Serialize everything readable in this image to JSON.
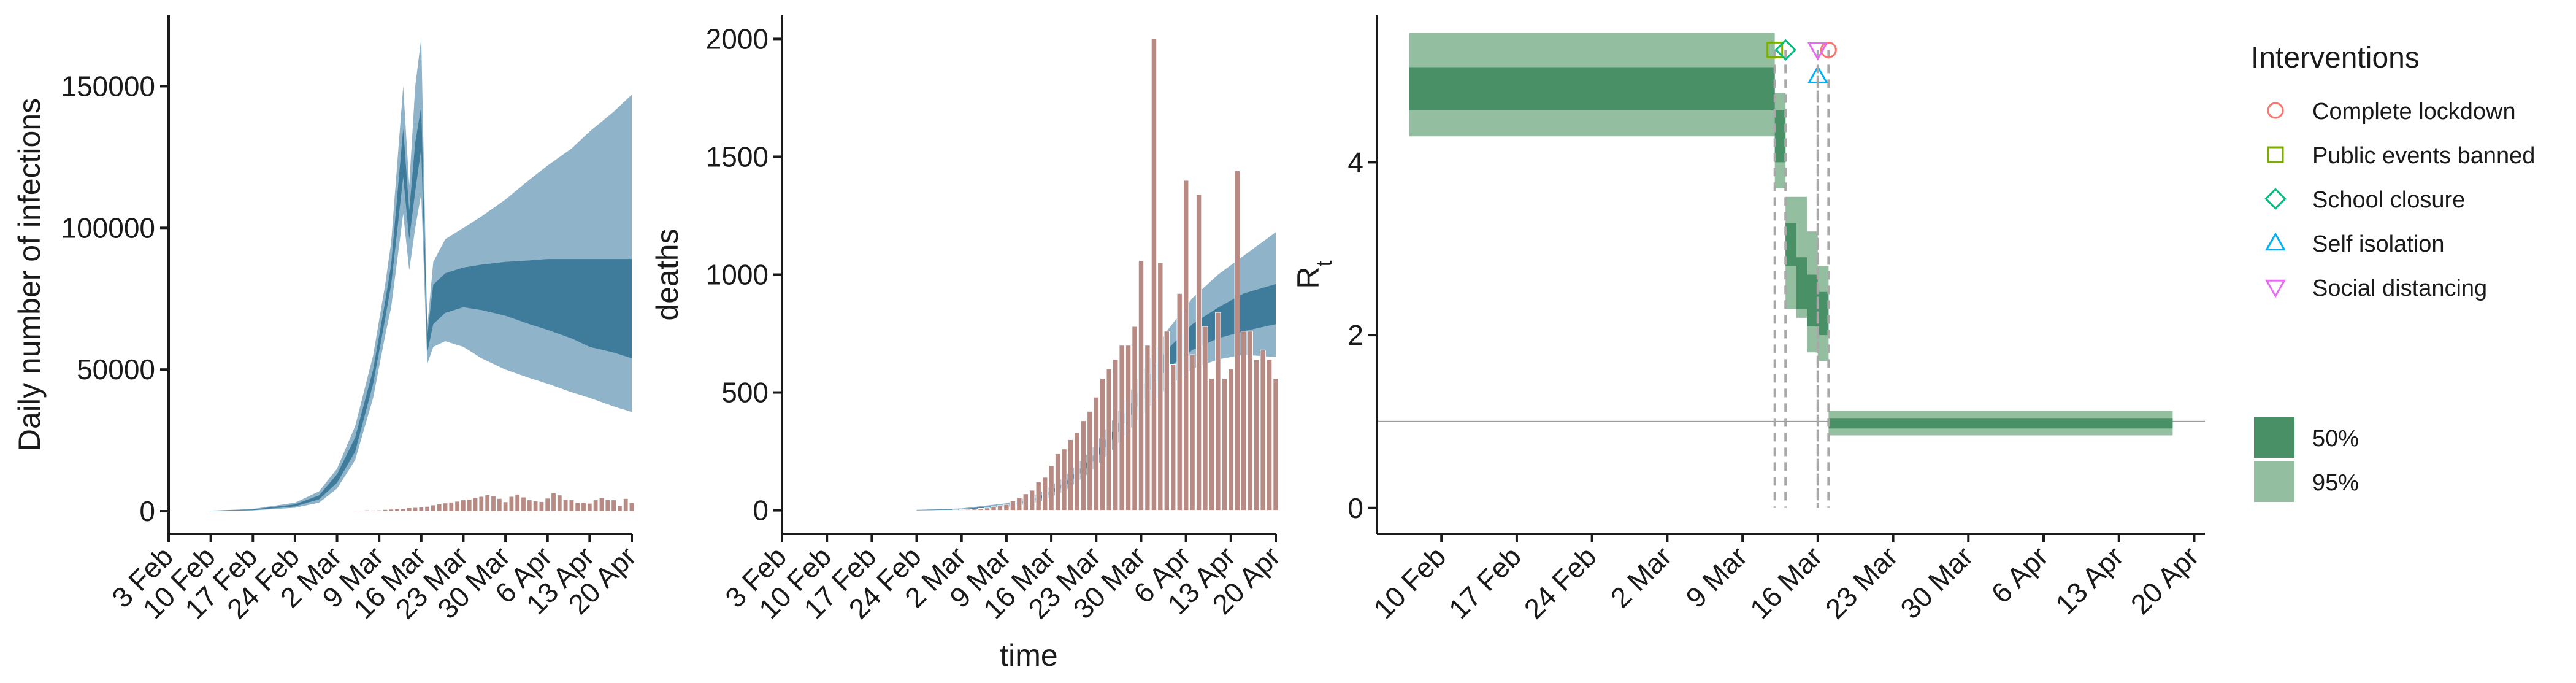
{
  "chart_data": [
    {
      "type": "area",
      "title": "",
      "xlabel": "",
      "ylabel": "Daily number of infections",
      "x_ticks": [
        "3 Feb",
        "10 Feb",
        "17 Feb",
        "24 Feb",
        "2 Mar",
        "9 Mar",
        "16 Mar",
        "23 Mar",
        "30 Mar",
        "6 Apr",
        "13 Apr",
        "20 Apr"
      ],
      "y_ticks": [
        "0",
        "50000",
        "100000",
        "150000"
      ],
      "ylim": [
        -8000,
        175000
      ],
      "xlim": [
        "2020-02-03",
        "2020-04-20"
      ],
      "series": [
        {
          "type": "band",
          "level": "95%",
          "color": "#8fb3c8",
          "x": [
            "2020-02-10",
            "2020-02-17",
            "2020-02-24",
            "2020-02-28",
            "2020-03-02",
            "2020-03-05",
            "2020-03-08",
            "2020-03-10",
            "2020-03-11",
            "2020-03-13",
            "2020-03-14",
            "2020-03-15",
            "2020-03-16",
            "2020-03-17",
            "2020-03-18",
            "2020-03-20",
            "2020-03-23",
            "2020-03-26",
            "2020-03-30",
            "2020-04-03",
            "2020-04-06",
            "2020-04-10",
            "2020-04-13",
            "2020-04-17",
            "2020-04-20"
          ],
          "upper": [
            200,
            800,
            3000,
            7000,
            15000,
            30000,
            55000,
            80000,
            95000,
            150000,
            115000,
            150000,
            167000,
            65000,
            88000,
            96000,
            100000,
            104000,
            110000,
            117000,
            122000,
            128000,
            134000,
            141000,
            147000
          ],
          "lower": [
            50,
            300,
            1200,
            3000,
            8000,
            18000,
            40000,
            62000,
            72000,
            105000,
            85000,
            100000,
            112000,
            52000,
            58000,
            60000,
            58000,
            54000,
            50000,
            47000,
            45000,
            42000,
            40000,
            37000,
            35000
          ]
        },
        {
          "type": "band",
          "level": "50%",
          "color": "#3f7c9b",
          "x": [
            "2020-02-10",
            "2020-02-17",
            "2020-02-24",
            "2020-02-28",
            "2020-03-02",
            "2020-03-05",
            "2020-03-08",
            "2020-03-10",
            "2020-03-11",
            "2020-03-13",
            "2020-03-14",
            "2020-03-15",
            "2020-03-16",
            "2020-03-17",
            "2020-03-18",
            "2020-03-20",
            "2020-03-23",
            "2020-03-26",
            "2020-03-30",
            "2020-04-03",
            "2020-04-06",
            "2020-04-10",
            "2020-04-13",
            "2020-04-17",
            "2020-04-20"
          ],
          "upper": [
            150,
            600,
            2400,
            5600,
            13000,
            26000,
            50000,
            74000,
            87000,
            135000,
            106000,
            130000,
            143000,
            62000,
            80000,
            84000,
            86000,
            87000,
            88000,
            88500,
            89000,
            89000,
            89000,
            89000,
            89000
          ],
          "lower": [
            80,
            400,
            1700,
            4200,
            10000,
            21000,
            45000,
            68000,
            80000,
            118000,
            96000,
            113000,
            128000,
            56000,
            66000,
            70000,
            72000,
            71000,
            69000,
            66000,
            64000,
            61000,
            58000,
            56000,
            54000
          ]
        }
      ],
      "bars": {
        "color": "#b78b84",
        "x": [
          "2020-02-25",
          "2020-02-26",
          "2020-02-27",
          "2020-02-28",
          "2020-02-29",
          "2020-03-01",
          "2020-03-02",
          "2020-03-03",
          "2020-03-04",
          "2020-03-05",
          "2020-03-06",
          "2020-03-07",
          "2020-03-08",
          "2020-03-09",
          "2020-03-10",
          "2020-03-11",
          "2020-03-12",
          "2020-03-13",
          "2020-03-14",
          "2020-03-15",
          "2020-03-16",
          "2020-03-17",
          "2020-03-18",
          "2020-03-19",
          "2020-03-20",
          "2020-03-21",
          "2020-03-22",
          "2020-03-23",
          "2020-03-24",
          "2020-03-25",
          "2020-03-26",
          "2020-03-27",
          "2020-03-28",
          "2020-03-29",
          "2020-03-30",
          "2020-03-31",
          "2020-04-01",
          "2020-04-02",
          "2020-04-03",
          "2020-04-04",
          "2020-04-05",
          "2020-04-06",
          "2020-04-07",
          "2020-04-08",
          "2020-04-09",
          "2020-04-10",
          "2020-04-11",
          "2020-04-12",
          "2020-04-13",
          "2020-04-14",
          "2020-04-15",
          "2020-04-16",
          "2020-04-17",
          "2020-04-18",
          "2020-04-19",
          "2020-04-20"
        ],
        "values": [
          0,
          0,
          0,
          0,
          0,
          100,
          0,
          200,
          150,
          250,
          300,
          400,
          350,
          400,
          600,
          700,
          800,
          900,
          1200,
          1300,
          1500,
          1700,
          2200,
          2500,
          2900,
          3200,
          3500,
          4000,
          4200,
          4700,
          5200,
          5800,
          5500,
          4500,
          3300,
          5200,
          6000,
          5000,
          4000,
          3600,
          3400,
          4600,
          6500,
          5700,
          4200,
          4000,
          3100,
          3000,
          2800,
          4000,
          4700,
          4100,
          4000,
          2000,
          4500,
          3000
        ]
      }
    },
    {
      "type": "bar",
      "title": "",
      "xlabel": "time",
      "ylabel": "deaths",
      "x_ticks": [
        "3 Feb",
        "10 Feb",
        "17 Feb",
        "24 Feb",
        "2 Mar",
        "9 Mar",
        "16 Mar",
        "23 Mar",
        "30 Mar",
        "6 Apr",
        "13 Apr",
        "20 Apr"
      ],
      "y_ticks": [
        "0",
        "500",
        "1000",
        "1500",
        "2000"
      ],
      "ylim": [
        -100,
        2100
      ],
      "xlim": [
        "2020-02-03",
        "2020-04-20"
      ],
      "series": [
        {
          "type": "band",
          "level": "95%",
          "color": "#8fb3c8",
          "x": [
            "2020-02-24",
            "2020-03-02",
            "2020-03-09",
            "2020-03-14",
            "2020-03-18",
            "2020-03-22",
            "2020-03-26",
            "2020-03-30",
            "2020-04-03",
            "2020-04-07",
            "2020-04-11",
            "2020-04-15",
            "2020-04-20"
          ],
          "upper": [
            2,
            8,
            30,
            70,
            140,
            250,
            400,
            580,
            760,
            900,
            1000,
            1080,
            1180
          ],
          "lower": [
            0,
            2,
            12,
            35,
            80,
            160,
            270,
            400,
            520,
            600,
            640,
            660,
            650
          ]
        },
        {
          "type": "band",
          "level": "50%",
          "color": "#3f7c9b",
          "x": [
            "2020-02-24",
            "2020-03-02",
            "2020-03-09",
            "2020-03-14",
            "2020-03-18",
            "2020-03-22",
            "2020-03-26",
            "2020-03-30",
            "2020-04-03",
            "2020-04-07",
            "2020-04-11",
            "2020-04-15",
            "2020-04-20"
          ],
          "upper": [
            1,
            5,
            22,
            55,
            115,
            215,
            350,
            520,
            680,
            790,
            860,
            920,
            960
          ],
          "lower": [
            0,
            3,
            16,
            45,
            100,
            190,
            315,
            460,
            600,
            680,
            730,
            760,
            790
          ]
        }
      ],
      "bars": {
        "color": "#b78b84",
        "x": [
          "2020-03-01",
          "2020-03-02",
          "2020-03-03",
          "2020-03-04",
          "2020-03-05",
          "2020-03-06",
          "2020-03-07",
          "2020-03-08",
          "2020-03-09",
          "2020-03-10",
          "2020-03-11",
          "2020-03-12",
          "2020-03-13",
          "2020-03-14",
          "2020-03-15",
          "2020-03-16",
          "2020-03-17",
          "2020-03-18",
          "2020-03-19",
          "2020-03-20",
          "2020-03-21",
          "2020-03-22",
          "2020-03-23",
          "2020-03-24",
          "2020-03-25",
          "2020-03-26",
          "2020-03-27",
          "2020-03-28",
          "2020-03-29",
          "2020-03-30",
          "2020-03-31",
          "2020-04-01",
          "2020-04-02",
          "2020-04-03",
          "2020-04-04",
          "2020-04-05",
          "2020-04-06",
          "2020-04-07",
          "2020-04-08",
          "2020-04-09",
          "2020-04-10",
          "2020-04-11",
          "2020-04-12",
          "2020-04-13",
          "2020-04-14",
          "2020-04-15",
          "2020-04-16",
          "2020-04-17",
          "2020-04-18",
          "2020-04-19",
          "2020-04-20"
        ],
        "values": [
          2,
          3,
          4,
          5,
          8,
          10,
          15,
          20,
          25,
          40,
          55,
          70,
          85,
          120,
          140,
          190,
          240,
          260,
          300,
          330,
          380,
          420,
          480,
          560,
          600,
          640,
          700,
          700,
          780,
          1060,
          700,
          2000,
          1050,
          760,
          620,
          920,
          1400,
          660,
          1340,
          780,
          560,
          840,
          560,
          600,
          1440,
          760,
          760,
          640,
          680,
          640,
          560
        ]
      }
    },
    {
      "type": "area",
      "title": "",
      "xlabel": "",
      "ylabel": "R",
      "ylabel_subscript": "t",
      "x_ticks": [
        "10 Feb",
        "17 Feb",
        "24 Feb",
        "2 Mar",
        "9 Mar",
        "16 Mar",
        "23 Mar",
        "30 Mar",
        "6 Apr",
        "13 Apr",
        "20 Apr"
      ],
      "y_ticks": [
        "0",
        "2",
        "4"
      ],
      "ylim": [
        -0.3,
        5.7
      ],
      "xlim": [
        "2020-02-04",
        "2020-04-21"
      ],
      "reference_line": 1,
      "series": [
        {
          "type": "band",
          "level": "95%",
          "color": "#93bfa0",
          "x": [
            "2020-02-07",
            "2020-03-12",
            "2020-03-12",
            "2020-03-13",
            "2020-03-13",
            "2020-03-14",
            "2020-03-14",
            "2020-03-15",
            "2020-03-15",
            "2020-03-16",
            "2020-03-16",
            "2020-03-17",
            "2020-03-17",
            "2020-04-18"
          ],
          "upper": [
            5.5,
            5.5,
            4.8,
            4.8,
            3.6,
            3.6,
            3.6,
            3.6,
            3.2,
            3.2,
            2.8,
            2.8,
            1.12,
            1.12
          ],
          "lower": [
            4.3,
            4.3,
            3.7,
            3.7,
            2.3,
            2.3,
            2.2,
            2.2,
            1.8,
            1.8,
            1.7,
            1.7,
            0.84,
            0.84
          ]
        },
        {
          "type": "band",
          "level": "50%",
          "color": "#4a9066",
          "x": [
            "2020-02-07",
            "2020-03-12",
            "2020-03-12",
            "2020-03-13",
            "2020-03-13",
            "2020-03-14",
            "2020-03-14",
            "2020-03-15",
            "2020-03-15",
            "2020-03-16",
            "2020-03-16",
            "2020-03-17",
            "2020-03-17",
            "2020-04-18"
          ],
          "upper": [
            5.1,
            5.1,
            4.6,
            4.6,
            3.3,
            3.3,
            2.9,
            2.9,
            2.7,
            2.7,
            2.5,
            2.5,
            1.04,
            1.04
          ],
          "lower": [
            4.6,
            4.6,
            4.0,
            4.0,
            2.8,
            2.8,
            2.3,
            2.3,
            2.1,
            2.1,
            2.0,
            2.0,
            0.92,
            0.92
          ]
        }
      ],
      "interventions": [
        {
          "name": "Complete lockdown",
          "date": "2020-03-17",
          "symbol": "circle",
          "color": "#f8766d",
          "y": 5.3
        },
        {
          "name": "Public events banned",
          "date": "2020-03-12",
          "symbol": "square",
          "color": "#7cae00",
          "y": 5.3
        },
        {
          "name": "School closure",
          "date": "2020-03-13",
          "symbol": "diamond",
          "color": "#00bf7d",
          "y": 5.3
        },
        {
          "name": "Self isolation",
          "date": "2020-03-16",
          "symbol": "triangle-up",
          "color": "#00b0f6",
          "y": 5.0
        },
        {
          "name": "Social distancing",
          "date": "2020-03-16",
          "symbol": "triangle-down",
          "color": "#e76bf3",
          "y": 5.3
        }
      ]
    }
  ],
  "legend": {
    "interventions_title": "Interventions",
    "interventions": [
      {
        "label": "Complete lockdown",
        "symbol": "circle",
        "color": "#f8766d"
      },
      {
        "label": "Public events banned",
        "symbol": "square",
        "color": "#7cae00"
      },
      {
        "label": "School closure",
        "symbol": "diamond",
        "color": "#00bf7d"
      },
      {
        "label": "Self isolation",
        "symbol": "triangle-up",
        "color": "#00b0f6"
      },
      {
        "label": "Social distancing",
        "symbol": "triangle-down",
        "color": "#e76bf3"
      }
    ],
    "bands": [
      {
        "label": "50%",
        "color": "#4a9066"
      },
      {
        "label": "95%",
        "color": "#93bfa0"
      }
    ]
  }
}
